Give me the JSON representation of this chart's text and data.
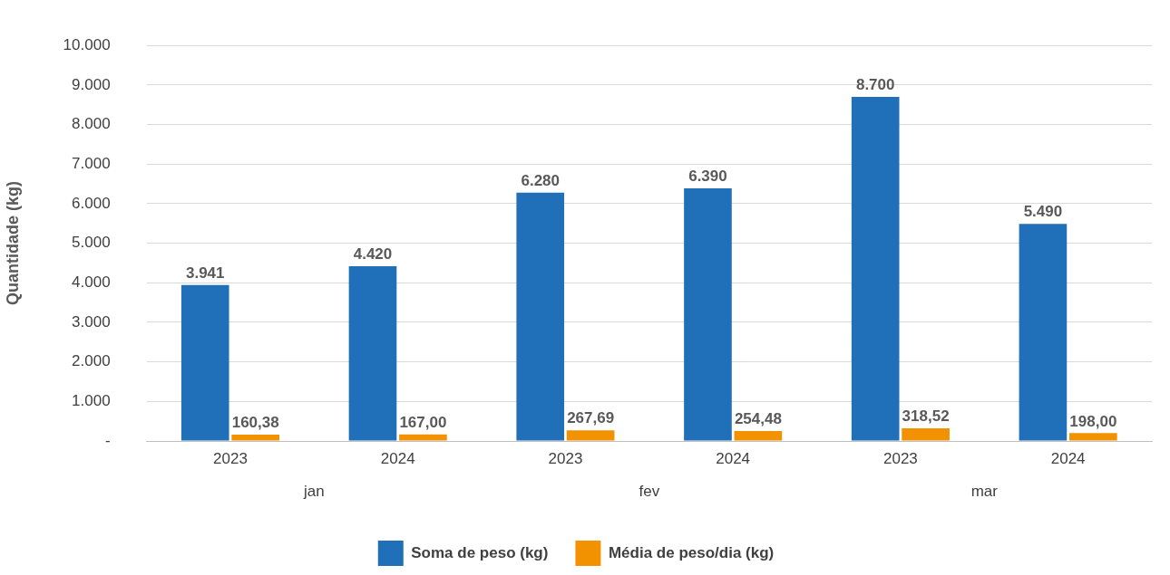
{
  "chart_data": {
    "type": "bar",
    "ylabel": "Quantidade (kg)",
    "categories": [
      "2023",
      "2024",
      "2023",
      "2024",
      "2023",
      "2024"
    ],
    "series": [
      {
        "name": "Soma de peso (kg)",
        "color": "#1f70b8",
        "values": [
          3941,
          4420,
          6280,
          6390,
          8700,
          5490
        ],
        "value_labels": [
          "3.941",
          "4.420",
          "6.280",
          "6.390",
          "8.700",
          "5.490"
        ]
      },
      {
        "name": "Média de peso/dia (kg)",
        "color": "#f39200",
        "values": [
          160.38,
          167,
          267.69,
          254.48,
          318.52,
          198
        ],
        "value_labels": [
          "160,38",
          "167,00",
          "267,69",
          "254,48",
          "318,52",
          "198,00"
        ]
      }
    ],
    "annotations": [
      "jan",
      "fev",
      "mar"
    ],
    "ylim": [
      0,
      10000
    ],
    "yticks": [
      {
        "value": 0,
        "label": "-"
      },
      {
        "value": 1000,
        "label": "1.000"
      },
      {
        "value": 2000,
        "label": "2.000"
      },
      {
        "value": 3000,
        "label": "3.000"
      },
      {
        "value": 4000,
        "label": "4.000"
      },
      {
        "value": 5000,
        "label": "5.000"
      },
      {
        "value": 6000,
        "label": "6.000"
      },
      {
        "value": 7000,
        "label": "7.000"
      },
      {
        "value": 8000,
        "label": "8.000"
      },
      {
        "value": 9000,
        "label": "9.000"
      },
      {
        "value": 10000,
        "label": "10.000"
      }
    ],
    "grid": "y",
    "legend": "bottom"
  }
}
